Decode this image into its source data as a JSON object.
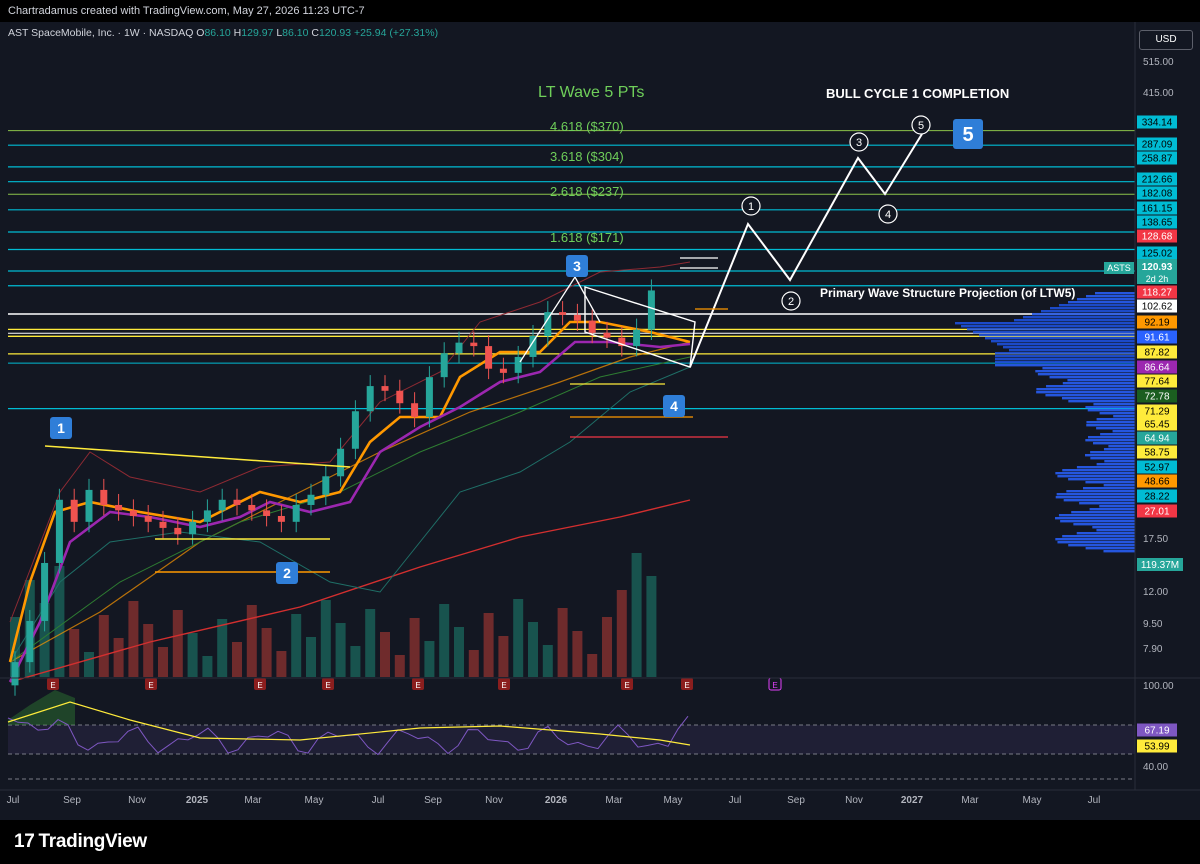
{
  "header": {
    "attribution": "Chartradamus created with TradingView.com, May 27, 2026 11:23 UTC-7"
  },
  "legend": {
    "symbol_line": "AST SpaceMobile, Inc. · 1W · NASDAQ",
    "open_label": "O",
    "open": "86.10",
    "high_label": "H",
    "high": "129.97",
    "low_label": "L",
    "low": "86.10",
    "close_label": "C",
    "close": "120.93",
    "change": "+25.94 (+27.31%)"
  },
  "currency": "USD",
  "annotations": {
    "lt_wave": "LT Wave 5 PTs",
    "bull_cycle": "BULL CYCLE 1 COMPLETION",
    "primary_projection": "Primary Wave Structure Projection (of LTW5)",
    "fib_4618": "4.618 ($370)",
    "fib_3618": "3.618 ($304)",
    "fib_2618": "2.618 ($237)",
    "fib_1618": "1.618 ($171)"
  },
  "wave_labels": {
    "box1": "1",
    "box2": "2",
    "box3": "3",
    "box4": "4",
    "box5": "5",
    "c1": "1",
    "c2": "2",
    "c3": "3",
    "c4": "4",
    "c5": "5"
  },
  "symbol_tag": {
    "symbol": "ASTS",
    "price": "120.93",
    "countdown": "2d 2h"
  },
  "price_axis": {
    "scale_labels": [
      "515.00",
      "415.00",
      "17.50",
      "12.00",
      "9.50",
      "7.90"
    ],
    "tags": [
      {
        "label": "334.14",
        "bg": "#00bcd4",
        "fg": "#000000"
      },
      {
        "label": "287.09",
        "bg": "#00bcd4",
        "fg": "#000000"
      },
      {
        "label": "258.87",
        "bg": "#00bcd4",
        "fg": "#000000"
      },
      {
        "label": "212.66",
        "bg": "#00bcd4",
        "fg": "#000000"
      },
      {
        "label": "182.08",
        "bg": "#00bcd4",
        "fg": "#000000"
      },
      {
        "label": "161.15",
        "bg": "#00bcd4",
        "fg": "#000000"
      },
      {
        "label": "138.65",
        "bg": "#00bcd4",
        "fg": "#000000"
      },
      {
        "label": "128.68",
        "bg": "#f23645",
        "fg": "#ffffff"
      },
      {
        "label": "125.02",
        "bg": "#00bcd4",
        "fg": "#000000"
      },
      {
        "label": "118.27",
        "bg": "#f23645",
        "fg": "#ffffff"
      },
      {
        "label": "102.62",
        "bg": "#ffffff",
        "fg": "#000000"
      },
      {
        "label": "92.19",
        "bg": "#ff9800",
        "fg": "#000000"
      },
      {
        "label": "91.61",
        "bg": "#2962ff",
        "fg": "#ffffff"
      },
      {
        "label": "87.82",
        "bg": "#ffeb3b",
        "fg": "#000000"
      },
      {
        "label": "86.64",
        "bg": "#9c27b0",
        "fg": "#ffffff"
      },
      {
        "label": "77.64",
        "bg": "#ffeb3b",
        "fg": "#000000"
      },
      {
        "label": "72.78",
        "bg": "#1b5e20",
        "fg": "#ffffff"
      },
      {
        "label": "71.29",
        "bg": "#ffeb3b",
        "fg": "#000000"
      },
      {
        "label": "65.45",
        "bg": "#ffeb3b",
        "fg": "#000000"
      },
      {
        "label": "64.94",
        "bg": "#26a69a",
        "fg": "#ffffff"
      },
      {
        "label": "58.75",
        "bg": "#ffeb3b",
        "fg": "#000000"
      },
      {
        "label": "52.97",
        "bg": "#00bcd4",
        "fg": "#000000"
      },
      {
        "label": "48.66",
        "bg": "#ff9800",
        "fg": "#000000"
      },
      {
        "label": "28.22",
        "bg": "#00bcd4",
        "fg": "#000000"
      },
      {
        "label": "27.01",
        "bg": "#f23645",
        "fg": "#ffffff"
      }
    ],
    "volume_tag": {
      "label": "119.37M",
      "bg": "#26a69a",
      "fg": "#ffffff"
    }
  },
  "rsi_axis": {
    "scale_labels": [
      "100.00",
      "40.00"
    ],
    "tags": [
      {
        "label": "67.19",
        "bg": "#7e57c2",
        "fg": "#ffffff"
      },
      {
        "label": "53.99",
        "bg": "#ffeb3b",
        "fg": "#000000"
      }
    ]
  },
  "time_axis": [
    "Jul",
    "Sep",
    "Nov",
    "2025",
    "Mar",
    "May",
    "Jul",
    "Sep",
    "Nov",
    "2026",
    "Mar",
    "May",
    "Jul",
    "Sep",
    "Nov",
    "2027",
    "Mar",
    "May",
    "Jul"
  ],
  "earnings_marker": "E",
  "footer": {
    "logo_mark": "17",
    "logo_text": "TradingView"
  },
  "colors": {
    "bull": "#26a69a",
    "bear": "#ef5350",
    "cyan_level": "#00bcd4",
    "fib_text": "#6fcf5a",
    "ema_orange": "#ff9800",
    "ema_purple": "#9c27b0",
    "ma_red": "#d32f2f",
    "rsi": "#7e57c2",
    "rsi_ma": "#ffeb3b"
  },
  "chart_data": {
    "type": "candlestick",
    "symbol": "ASTS",
    "interval": "1W",
    "exchange": "NASDAQ",
    "y_scale": "log",
    "ylim": [
      7.9,
      515
    ],
    "last_bar": {
      "open": 86.1,
      "high": 129.97,
      "low": 86.1,
      "close": 120.93,
      "change": 25.94,
      "change_pct": 27.31
    },
    "x_ticks": [
      "Jul",
      "Sep",
      "Nov",
      "2025",
      "Mar",
      "May",
      "Jul",
      "Sep",
      "Nov",
      "2026",
      "Mar",
      "May",
      "Jul",
      "Sep",
      "Nov",
      "2027",
      "Mar",
      "May",
      "Jul"
    ],
    "horizontal_levels": [
      334.14,
      287.09,
      258.87,
      212.66,
      182.08,
      161.15,
      138.65,
      128.68,
      125.02,
      118.27,
      102.62,
      92.19,
      91.61,
      87.82,
      86.64,
      77.64,
      72.78,
      71.29,
      65.45,
      64.94,
      58.75,
      52.97,
      48.66,
      28.22,
      27.01
    ],
    "fib_targets": [
      {
        "label": "4.618 ($370)",
        "ratio": 4.618,
        "price": 370
      },
      {
        "label": "3.618 ($304)",
        "ratio": 3.618,
        "price": 304
      },
      {
        "label": "2.618 ($237)",
        "ratio": 2.618,
        "price": 237
      },
      {
        "label": "1.618 ($171)",
        "ratio": 1.618,
        "price": 171
      }
    ],
    "approx_weekly_closes": [
      9,
      12,
      18,
      28,
      24,
      30,
      27,
      26,
      25,
      24,
      23,
      22,
      24,
      26,
      28,
      27,
      26,
      25,
      24,
      27,
      29,
      33,
      40,
      52,
      62,
      60,
      55,
      50,
      66,
      78,
      84,
      82,
      70,
      68,
      76,
      88,
      104,
      102,
      98,
      90,
      87,
      82,
      92,
      121
    ],
    "volume_last": "119.37M",
    "rsi_ylim": [
      20,
      100
    ],
    "rsi_last": 67.19,
    "rsi_ma_last": 53.99
  }
}
